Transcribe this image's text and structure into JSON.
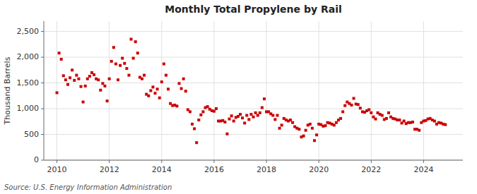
{
  "chart_data": {
    "type": "scatter",
    "title": "Monthly Total Propylene by Rail",
    "ylabel": "Thousand Barrels",
    "source": "Source: U.S. Energy Information Administration",
    "color": "#cc0000",
    "marker": "square",
    "grid": true,
    "xlim": [
      2009.5,
      2025.5
    ],
    "ylim": [
      0,
      2700
    ],
    "xticks": [
      2010,
      2012,
      2014,
      2016,
      2018,
      2020,
      2022,
      2024
    ],
    "yticks": [
      0,
      500,
      {
        "value": 1000,
        "label": "1,000"
      },
      {
        "value": 1500,
        "label": "1,500"
      },
      {
        "value": 2000,
        "label": "2,000"
      },
      {
        "value": 2500,
        "label": "2,500"
      }
    ],
    "x": [
      2010.0,
      2010.083,
      2010.167,
      2010.25,
      2010.333,
      2010.417,
      2010.5,
      2010.583,
      2010.667,
      2010.75,
      2010.833,
      2010.917,
      2011.0,
      2011.083,
      2011.167,
      2011.25,
      2011.333,
      2011.417,
      2011.5,
      2011.583,
      2011.667,
      2011.75,
      2011.833,
      2011.917,
      2012.0,
      2012.083,
      2012.167,
      2012.25,
      2012.333,
      2012.417,
      2012.5,
      2012.583,
      2012.667,
      2012.75,
      2012.833,
      2012.917,
      2013.0,
      2013.083,
      2013.167,
      2013.25,
      2013.333,
      2013.417,
      2013.5,
      2013.583,
      2013.667,
      2013.75,
      2013.833,
      2013.917,
      2014.0,
      2014.083,
      2014.167,
      2014.25,
      2014.333,
      2014.417,
      2014.5,
      2014.583,
      2014.667,
      2014.75,
      2014.833,
      2014.917,
      2015.0,
      2015.083,
      2015.167,
      2015.25,
      2015.333,
      2015.417,
      2015.5,
      2015.583,
      2015.667,
      2015.75,
      2015.833,
      2015.917,
      2016.0,
      2016.083,
      2016.167,
      2016.25,
      2016.333,
      2016.417,
      2016.5,
      2016.583,
      2016.667,
      2016.75,
      2016.833,
      2016.917,
      2017.0,
      2017.083,
      2017.167,
      2017.25,
      2017.333,
      2017.417,
      2017.5,
      2017.583,
      2017.667,
      2017.75,
      2017.833,
      2017.917,
      2018.0,
      2018.083,
      2018.167,
      2018.25,
      2018.333,
      2018.417,
      2018.5,
      2018.583,
      2018.667,
      2018.75,
      2018.833,
      2018.917,
      2019.0,
      2019.083,
      2019.167,
      2019.25,
      2019.333,
      2019.417,
      2019.5,
      2019.583,
      2019.667,
      2019.75,
      2019.833,
      2019.917,
      2020.0,
      2020.083,
      2020.167,
      2020.25,
      2020.333,
      2020.417,
      2020.5,
      2020.583,
      2020.667,
      2020.75,
      2020.833,
      2020.917,
      2021.0,
      2021.083,
      2021.167,
      2021.25,
      2021.333,
      2021.417,
      2021.5,
      2021.583,
      2021.667,
      2021.75,
      2021.833,
      2021.917,
      2022.0,
      2022.083,
      2022.167,
      2022.25,
      2022.333,
      2022.417,
      2022.5,
      2022.583,
      2022.667,
      2022.75,
      2022.833,
      2022.917,
      2023.0,
      2023.083,
      2023.167,
      2023.25,
      2023.333,
      2023.417,
      2023.5,
      2023.583,
      2023.667,
      2023.75,
      2023.833,
      2023.917,
      2024.0,
      2024.083,
      2024.167,
      2024.25,
      2024.333,
      2024.417,
      2024.5,
      2024.583,
      2024.667,
      2024.75,
      2024.833
    ],
    "values": [
      1310,
      2080,
      1960,
      1640,
      1560,
      1470,
      1600,
      1750,
      1550,
      1650,
      1580,
      1430,
      1130,
      1440,
      1580,
      1630,
      1700,
      1660,
      1580,
      1560,
      1360,
      1490,
      1440,
      1150,
      1580,
      1920,
      2190,
      1870,
      1560,
      1840,
      1980,
      1880,
      1780,
      1650,
      2350,
      1980,
      2300,
      2080,
      1610,
      1580,
      1650,
      1280,
      1250,
      1350,
      1420,
      1300,
      1380,
      1210,
      1520,
      1870,
      1650,
      1380,
      1100,
      1060,
      1070,
      1050,
      1490,
      1390,
      1580,
      1340,
      980,
      940,
      700,
      610,
      340,
      780,
      880,
      940,
      1020,
      1040,
      990,
      960,
      950,
      1000,
      760,
      760,
      770,
      740,
      510,
      800,
      860,
      760,
      830,
      850,
      890,
      820,
      720,
      870,
      790,
      890,
      840,
      920,
      870,
      920,
      1020,
      1190,
      940,
      940,
      900,
      870,
      790,
      870,
      620,
      680,
      810,
      780,
      760,
      780,
      730,
      650,
      620,
      600,
      450,
      470,
      580,
      680,
      700,
      620,
      380,
      490,
      700,
      690,
      660,
      670,
      730,
      720,
      700,
      680,
      730,
      780,
      810,
      940,
      1060,
      1130,
      1100,
      1070,
      1200,
      1090,
      1080,
      1010,
      940,
      930,
      960,
      980,
      920,
      840,
      800,
      920,
      890,
      870,
      790,
      810,
      920,
      840,
      810,
      800,
      780,
      780,
      720,
      760,
      710,
      730,
      730,
      740,
      600,
      600,
      580,
      730,
      760,
      770,
      800,
      810,
      780,
      760,
      700,
      730,
      720,
      700,
      690
    ]
  }
}
